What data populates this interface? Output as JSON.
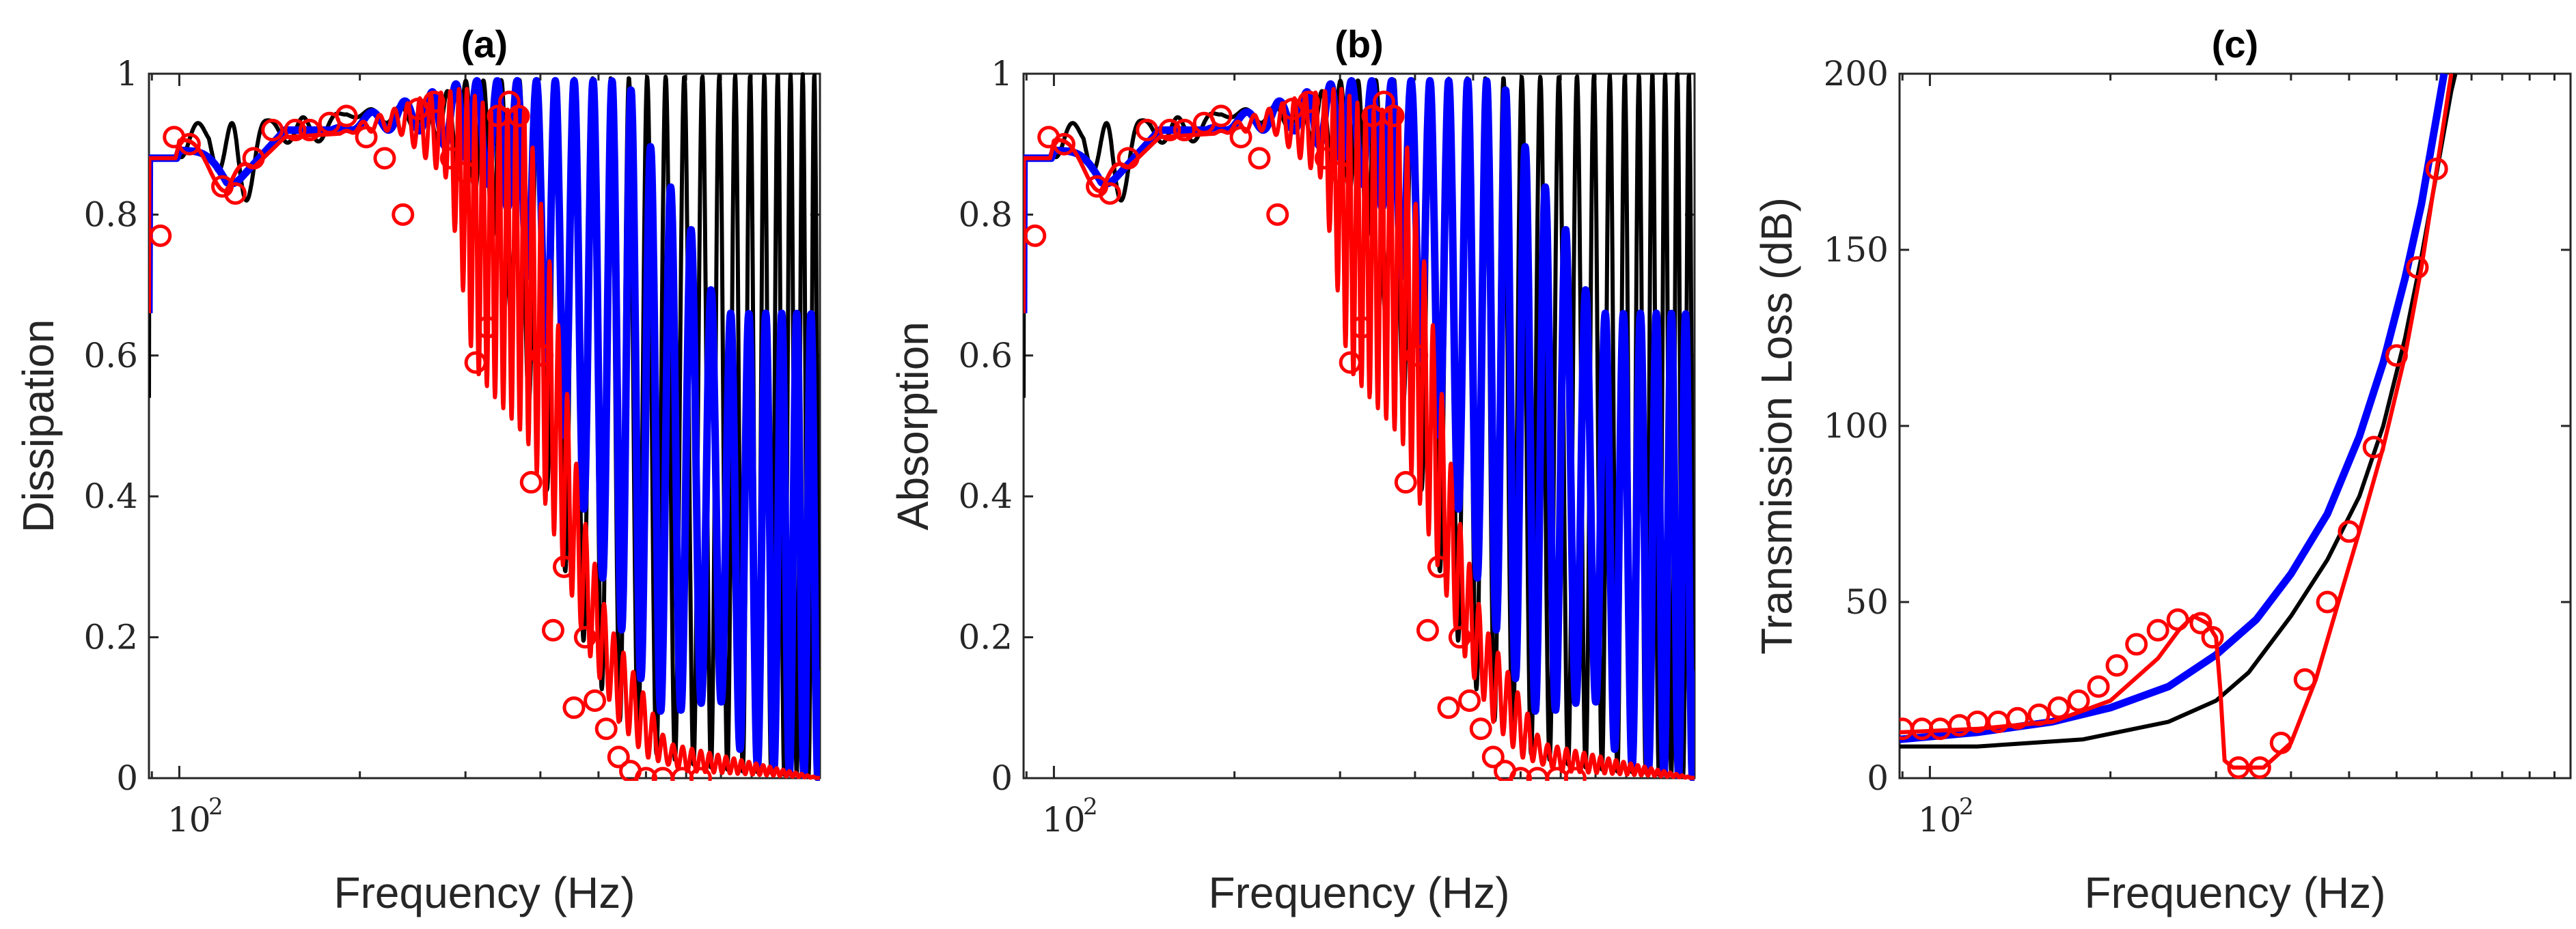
{
  "chart_data": [
    {
      "panel": "a",
      "type": "line",
      "title": "(a)",
      "xlabel": "Frequency (Hz)",
      "ylabel": "Dissipation",
      "xscale": "log",
      "xlim": [
        89,
        1170
      ],
      "ylim": [
        0,
        1
      ],
      "x_tick_label": {
        "base": "10",
        "exponent": "2",
        "value": 100
      },
      "y_ticks": [
        0,
        0.2,
        0.4,
        0.6,
        0.8,
        1
      ],
      "y_tick_labels": [
        "0",
        "0.2",
        "0.4",
        "0.6",
        "0.8",
        "1"
      ],
      "grid": false,
      "series": [
        {
          "name": "black",
          "color": "#000000",
          "kind": "oscillating",
          "start": 0.54,
          "low": [
            [
              100,
              0.88
            ],
            [
              112,
              0.9
            ],
            [
              125,
              0.76
            ],
            [
              140,
              0.93
            ],
            [
              160,
              0.88
            ],
            [
              190,
              0.94
            ],
            [
              260,
              0.92
            ],
            [
              300,
              0.86
            ],
            [
              340,
              0.75
            ],
            [
              400,
              0.45
            ],
            [
              460,
              0.22
            ],
            [
              520,
              0.1
            ],
            [
              600,
              0.04
            ],
            [
              700,
              0.02
            ],
            [
              850,
              0.01
            ],
            [
              1170,
              0
            ]
          ],
          "high": [
            [
              89,
              0.6
            ],
            [
              100,
              0.93
            ],
            [
              125,
              0.93
            ],
            [
              170,
              0.94
            ],
            [
              260,
              0.96
            ],
            [
              300,
              0.99
            ],
            [
              1170,
              1.0
            ]
          ],
          "period_pts": [
            [
              100,
              12
            ],
            [
              160,
              22
            ],
            [
              220,
              26
            ],
            [
              300,
              20
            ],
            [
              400,
              28
            ],
            [
              550,
              38
            ],
            [
              700,
              50
            ]
          ]
        },
        {
          "name": "blue",
          "color": "#0000ff",
          "kind": "oscillating",
          "start": 0.66,
          "low": [
            [
              100,
              0.88
            ],
            [
              120,
              0.83
            ],
            [
              150,
              0.92
            ],
            [
              250,
              0.92
            ],
            [
              300,
              0.88
            ],
            [
              360,
              0.8
            ],
            [
              420,
              0.55
            ],
            [
              500,
              0.3
            ],
            [
              580,
              0.15
            ],
            [
              640,
              0.09
            ],
            [
              720,
              0.1
            ],
            [
              790,
              0.12
            ],
            [
              880,
              0.02
            ],
            [
              1000,
              0.01
            ],
            [
              1170,
              0
            ]
          ],
          "high": [
            [
              89,
              0.67
            ],
            [
              100,
              0.9
            ],
            [
              130,
              0.86
            ],
            [
              200,
              0.94
            ],
            [
              300,
              0.99
            ],
            [
              560,
              0.99
            ],
            [
              620,
              0.88
            ],
            [
              700,
              0.8
            ],
            [
              780,
              0.68
            ],
            [
              800,
              0.66
            ]
          ],
          "period_pts": [
            [
              100,
              40
            ],
            [
              200,
              30
            ],
            [
              300,
              24
            ],
            [
              420,
              30
            ],
            [
              550,
              40
            ],
            [
              700,
              55
            ],
            [
              800,
              60
            ]
          ]
        },
        {
          "name": "red",
          "color": "#ff0000",
          "kind": "oscillating-with-markers",
          "start": 0.66,
          "low": [
            [
              100,
              0.88
            ],
            [
              120,
              0.83
            ],
            [
              150,
              0.91
            ],
            [
              230,
              0.92
            ],
            [
              280,
              0.85
            ],
            [
              310,
              0.58
            ],
            [
              380,
              0.48
            ],
            [
              430,
              0.32
            ],
            [
              480,
              0.18
            ],
            [
              540,
              0.08
            ],
            [
              600,
              0.03
            ],
            [
              700,
              0.01
            ],
            [
              1170,
              0
            ]
          ],
          "high": [
            [
              89,
              0.67
            ],
            [
              100,
              0.91
            ],
            [
              140,
              0.86
            ],
            [
              200,
              0.93
            ],
            [
              260,
              0.97
            ],
            [
              300,
              0.98
            ],
            [
              330,
              0.95
            ],
            [
              380,
              0.95
            ],
            [
              420,
              0.7
            ],
            [
              470,
              0.38
            ],
            [
              520,
              0.22
            ],
            [
              580,
              0.14
            ],
            [
              650,
              0.05
            ],
            [
              1170,
              0
            ]
          ],
          "period_pts": [
            [
              100,
              30
            ],
            [
              200,
              14
            ],
            [
              300,
              9
            ],
            [
              400,
              13
            ],
            [
              500,
              18
            ],
            [
              650,
              25
            ]
          ],
          "markers": [
            [
              93,
              0.77
            ],
            [
              98,
              0.91
            ],
            [
              104,
              0.9
            ],
            [
              118,
              0.84
            ],
            [
              124,
              0.83
            ],
            [
              133,
              0.88
            ],
            [
              143,
              0.92
            ],
            [
              156,
              0.92
            ],
            [
              165,
              0.92
            ],
            [
              178,
              0.93
            ],
            [
              190,
              0.94
            ],
            [
              205,
              0.91
            ],
            [
              220,
              0.88
            ],
            [
              236,
              0.8
            ],
            [
              250,
              0.95
            ],
            [
              266,
              0.96
            ],
            [
              284,
              0.88
            ],
            [
              300,
              0.86
            ],
            [
              312,
              0.59
            ],
            [
              326,
              0.64
            ],
            [
              340,
              0.94
            ],
            [
              355,
              0.96
            ],
            [
              368,
              0.94
            ],
            [
              386,
              0.42
            ],
            [
              403,
              0.6
            ],
            [
              420,
              0.21
            ],
            [
              438,
              0.3
            ],
            [
              455,
              0.1
            ],
            [
              475,
              0.2
            ],
            [
              493,
              0.11
            ],
            [
              515,
              0.07
            ],
            [
              540,
              0.03
            ],
            [
              565,
              0.01
            ],
            [
              600,
              0.0
            ],
            [
              640,
              0.0
            ],
            [
              690,
              0.0
            ],
            [
              740,
              0.0
            ]
          ]
        }
      ]
    },
    {
      "panel": "b",
      "type": "line",
      "title": "(b)",
      "xlabel": "Frequency (Hz)",
      "ylabel": "Absorption",
      "xscale": "log",
      "xlim": [
        89,
        1170
      ],
      "ylim": [
        0,
        1
      ],
      "x_tick_label": {
        "base": "10",
        "exponent": "2",
        "value": 100
      },
      "y_ticks": [
        0,
        0.2,
        0.4,
        0.6,
        0.8,
        1
      ],
      "y_tick_labels": [
        "0",
        "0.2",
        "0.4",
        "0.6",
        "0.8",
        "1"
      ],
      "grid": false,
      "note": "same series shapes as panel (a)"
    },
    {
      "panel": "c",
      "type": "line",
      "title": "(c)",
      "xlabel": "Frequency (Hz)",
      "ylabel": "Transmission Loss (dB)",
      "xscale": "log",
      "xlim": [
        89,
        1170
      ],
      "ylim": [
        0,
        200
      ],
      "x_tick_label": {
        "base": "10",
        "exponent": "2",
        "value": 100
      },
      "y_ticks": [
        0,
        50,
        100,
        150,
        200
      ],
      "y_tick_labels": [
        "0",
        "50",
        "100",
        "150",
        "200"
      ],
      "grid": false,
      "series": [
        {
          "name": "black",
          "color": "#000000",
          "points": [
            [
              89,
              9
            ],
            [
              120,
              9
            ],
            [
              180,
              11
            ],
            [
              250,
              16
            ],
            [
              300,
              22
            ],
            [
              340,
              30
            ],
            [
              400,
              46
            ],
            [
              460,
              62
            ],
            [
              520,
              80
            ],
            [
              570,
              100
            ],
            [
              620,
              125
            ],
            [
              660,
              148
            ],
            [
              700,
              172
            ],
            [
              740,
              195
            ],
            [
              752,
              200
            ]
          ]
        },
        {
          "name": "blue",
          "color": "#0000ff",
          "points": [
            [
              89,
              11
            ],
            [
              120,
              13
            ],
            [
              160,
              16
            ],
            [
              200,
              20
            ],
            [
              250,
              26
            ],
            [
              300,
              35
            ],
            [
              350,
              45
            ],
            [
              400,
              58
            ],
            [
              460,
              75
            ],
            [
              520,
              97
            ],
            [
              570,
              118
            ],
            [
              620,
              142
            ],
            [
              660,
              163
            ],
            [
              700,
              188
            ],
            [
              720,
              200
            ]
          ]
        },
        {
          "name": "red",
          "color": "#ff0000",
          "points": [
            [
              89,
              13
            ],
            [
              120,
              14
            ],
            [
              160,
              16
            ],
            [
              200,
              22
            ],
            [
              240,
              34
            ],
            [
              260,
              42
            ],
            [
              275,
              46
            ],
            [
              290,
              44
            ],
            [
              300,
              40
            ],
            [
              305,
              25
            ],
            [
              310,
              5
            ],
            [
              320,
              3
            ],
            [
              360,
              3
            ],
            [
              400,
              10
            ],
            [
              440,
              28
            ],
            [
              480,
              50
            ],
            [
              520,
              70
            ],
            [
              570,
              94
            ],
            [
              620,
              120
            ],
            [
              660,
              145
            ],
            [
              700,
              173
            ],
            [
              740,
              200
            ]
          ],
          "markers": [
            [
              90,
              14
            ],
            [
              97,
              14
            ],
            [
              104,
              14
            ],
            [
              112,
              15
            ],
            [
              120,
              16
            ],
            [
              130,
              16
            ],
            [
              140,
              17
            ],
            [
              152,
              18
            ],
            [
              164,
              20
            ],
            [
              177,
              22
            ],
            [
              191,
              26
            ],
            [
              205,
              32
            ],
            [
              221,
              38
            ],
            [
              240,
              42
            ],
            [
              259,
              45
            ],
            [
              283,
              44
            ],
            [
              296,
              40
            ],
            [
              327,
              3
            ],
            [
              355,
              3
            ],
            [
              385,
              10
            ],
            [
              422,
              28
            ],
            [
              460,
              50
            ],
            [
              500,
              70
            ],
            [
              550,
              94
            ],
            [
              600,
              120
            ],
            [
              650,
              145
            ],
            [
              700,
              173
            ]
          ]
        }
      ]
    }
  ]
}
